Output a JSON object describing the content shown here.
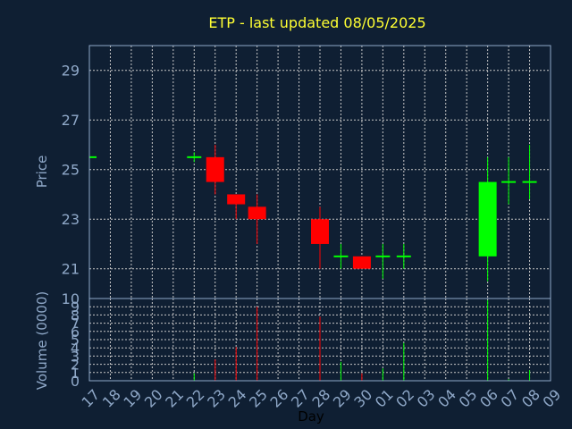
{
  "chart_data": {
    "type": "candlestick",
    "title": "ETP - last updated 08/05/2025",
    "price_axis": {
      "label": "Price",
      "ylim": [
        19.8,
        30
      ],
      "ticks": [
        21,
        23,
        25,
        27,
        29
      ]
    },
    "volume_axis": {
      "label": "Volume (0000)",
      "ylim": [
        0,
        10
      ],
      "ticks": [
        0,
        1,
        2,
        3,
        4,
        5,
        6,
        7,
        8,
        9,
        10
      ]
    },
    "xlabel": "Day",
    "x_ticks": [
      "17",
      "18",
      "19",
      "20",
      "21",
      "22",
      "23",
      "24",
      "25",
      "26",
      "27",
      "28",
      "29",
      "30",
      "01",
      "02",
      "03",
      "04",
      "05",
      "06",
      "07",
      "08",
      "09"
    ],
    "grid": true,
    "colors": {
      "up": "#00ff00",
      "down": "#ff0000",
      "title": "#ffff33",
      "axis": "#8fa8c8",
      "background": "#0f1f33"
    },
    "candles": [
      {
        "day": "17",
        "open": 25.5,
        "high": 25.5,
        "low": 25.5,
        "close": 25.5,
        "volume": 0
      },
      {
        "day": "22",
        "open": 25.5,
        "high": 25.7,
        "low": 25.3,
        "close": 25.5,
        "volume": 0.9
      },
      {
        "day": "23",
        "open": 25.5,
        "high": 26.0,
        "low": 24.0,
        "close": 24.5,
        "volume": 2.6
      },
      {
        "day": "24",
        "open": 24.0,
        "high": 24.0,
        "low": 23.0,
        "close": 23.6,
        "volume": 4.1
      },
      {
        "day": "25",
        "open": 23.5,
        "high": 24.0,
        "low": 22.0,
        "close": 23.0,
        "volume": 9.0
      },
      {
        "day": "28",
        "open": 23.0,
        "high": 23.5,
        "low": 21.0,
        "close": 22.0,
        "volume": 7.8
      },
      {
        "day": "29",
        "open": 21.5,
        "high": 22.0,
        "low": 21.0,
        "close": 21.5,
        "volume": 2.3
      },
      {
        "day": "30",
        "open": 21.5,
        "high": 21.5,
        "low": 21.0,
        "close": 21.0,
        "volume": 0.9
      },
      {
        "day": "01",
        "open": 21.5,
        "high": 22.0,
        "low": 20.6,
        "close": 21.5,
        "volume": 1.5
      },
      {
        "day": "02",
        "open": 21.5,
        "high": 22.0,
        "low": 21.0,
        "close": 21.5,
        "volume": 4.6
      },
      {
        "day": "06",
        "open": 21.5,
        "high": 25.5,
        "low": 20.5,
        "close": 24.5,
        "volume": 9.8
      },
      {
        "day": "07",
        "open": 24.5,
        "high": 25.5,
        "low": 23.6,
        "close": 24.5,
        "volume": 0.2
      },
      {
        "day": "08",
        "open": 24.5,
        "high": 26.0,
        "low": 23.8,
        "close": 24.5,
        "volume": 1.3
      }
    ]
  }
}
